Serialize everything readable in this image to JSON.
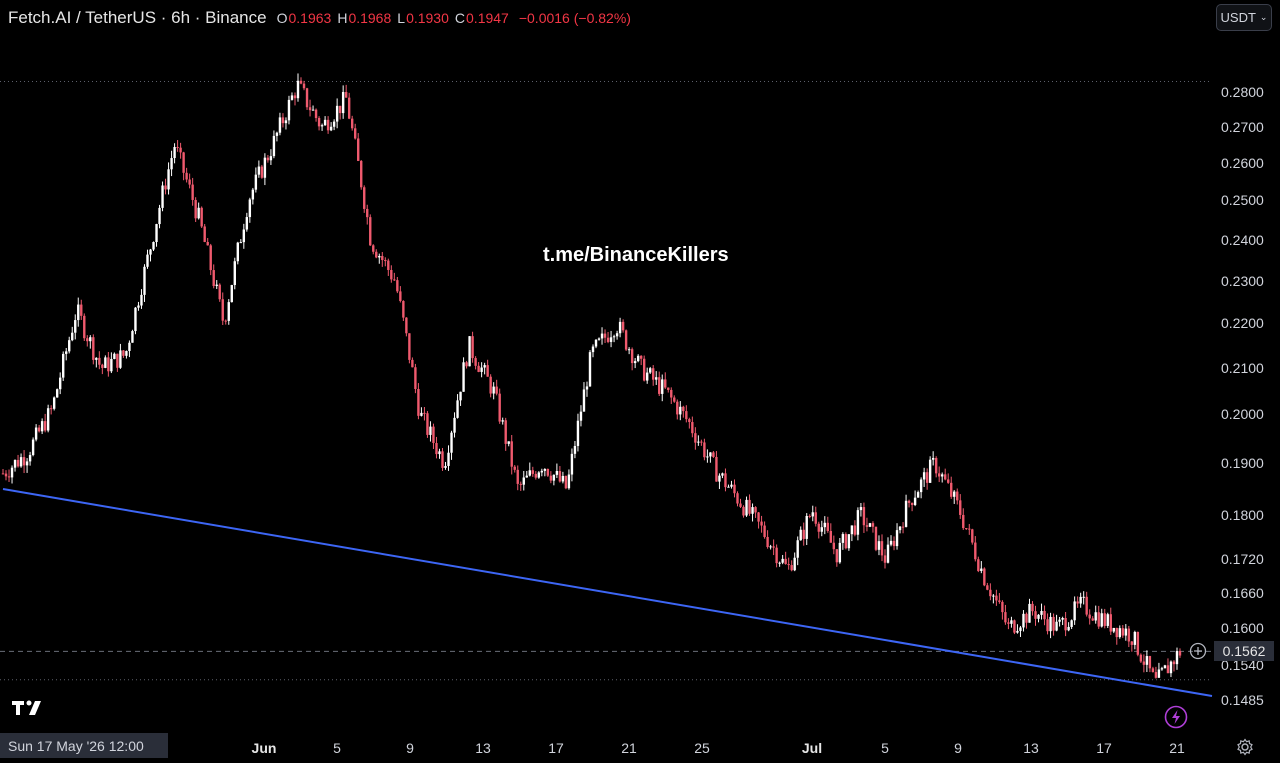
{
  "header": {
    "title": "Fetch.AI / TetherUS · 6h · Binance",
    "open_label": "O",
    "open": "0.1963",
    "high_label": "H",
    "high": "0.1968",
    "low_label": "L",
    "low": "0.1930",
    "close_label": "C",
    "close": "0.1947",
    "change": "−0.0016 (−0.82%)"
  },
  "currency_button": "USDT",
  "watermark": "t.me/BinanceKillers",
  "current_price": "0.1562",
  "cursor_date": "Sun 17 May '26   12:00",
  "colors": {
    "up": "#ffffff",
    "down": "#f05a6e",
    "trendline": "#3d66f5",
    "background": "#000000"
  },
  "icons": {
    "logo": "tradingview-logo-icon",
    "flash": "flash-icon",
    "settings": "gear-icon",
    "add": "plus-circle-icon"
  },
  "chart_data": {
    "type": "candlestick",
    "scale": "log",
    "y_ticks": [
      "0.2800",
      "0.2700",
      "0.2600",
      "0.2500",
      "0.2400",
      "0.2300",
      "0.2200",
      "0.2100",
      "0.2000",
      "0.1900",
      "0.1800",
      "0.1720",
      "0.1660",
      "0.1600",
      "0.1540",
      "0.1485"
    ],
    "x_ticks": [
      {
        "label": "Jun",
        "bold": true
      },
      {
        "label": "5",
        "bold": false
      },
      {
        "label": "9",
        "bold": false
      },
      {
        "label": "13",
        "bold": false
      },
      {
        "label": "17",
        "bold": false
      },
      {
        "label": "21",
        "bold": false
      },
      {
        "label": "25",
        "bold": false
      },
      {
        "label": "Jul",
        "bold": true
      },
      {
        "label": "5",
        "bold": false
      },
      {
        "label": "9",
        "bold": false
      },
      {
        "label": "13",
        "bold": false
      },
      {
        "label": "17",
        "bold": false
      },
      {
        "label": "21",
        "bold": false
      }
    ],
    "price_path": [
      0.188,
      0.192,
      0.201,
      0.223,
      0.21,
      0.213,
      0.238,
      0.265,
      0.245,
      0.22,
      0.25,
      0.265,
      0.282,
      0.27,
      0.278,
      0.24,
      0.23,
      0.2,
      0.19,
      0.215,
      0.205,
      0.185,
      0.19,
      0.185,
      0.213,
      0.22,
      0.21,
      0.205,
      0.198,
      0.189,
      0.183,
      0.177,
      0.17,
      0.181,
      0.173,
      0.18,
      0.172,
      0.183,
      0.19,
      0.181,
      0.169,
      0.16,
      0.163,
      0.16,
      0.164,
      0.161,
      0.159,
      0.151,
      0.1562
    ],
    "trendline": {
      "start": 0.185,
      "end": 0.149
    },
    "session_high": 0.283,
    "session_low": 0.1498
  }
}
